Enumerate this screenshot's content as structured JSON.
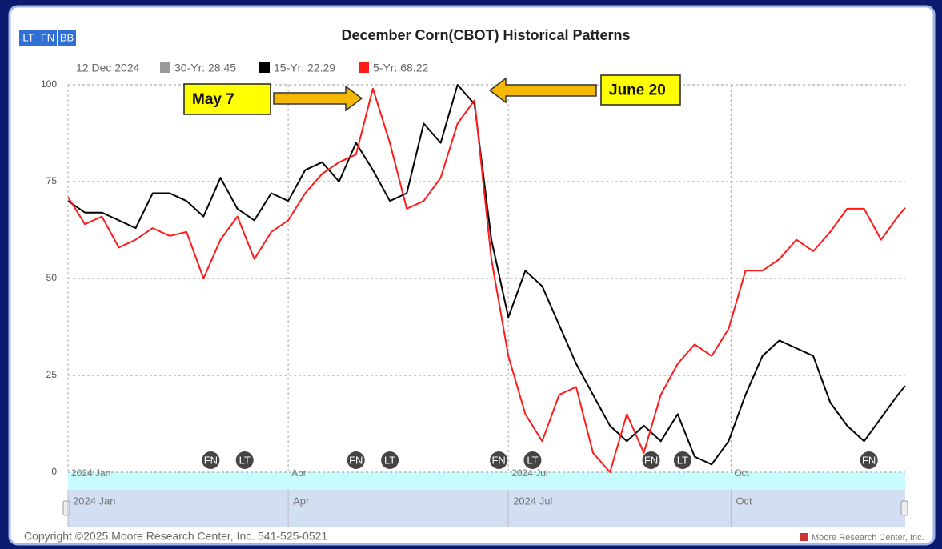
{
  "chart_data": {
    "type": "line",
    "title": "December Corn(CBOT) Historical Patterns",
    "date": "12 Dec 2024",
    "buttons": [
      "LT",
      "FN",
      "BB"
    ],
    "series": [
      {
        "name": "30-Yr: 28.45",
        "color": "#999999",
        "visible": false
      },
      {
        "name": "15-Yr: 22.29",
        "color": "#000000",
        "visible": true,
        "values": [
          70,
          67,
          67,
          65,
          63,
          72,
          72,
          70,
          66,
          76,
          68,
          65,
          72,
          70,
          78,
          80,
          75,
          85,
          78,
          70,
          72,
          90,
          85,
          100,
          95,
          60,
          40,
          52,
          48,
          38,
          28,
          20,
          12,
          8,
          12,
          8,
          15,
          4,
          2,
          8,
          20,
          30,
          34,
          32,
          30,
          18,
          12,
          8,
          14,
          20,
          22.29
        ]
      },
      {
        "name": "5-Yr: 68.22",
        "color": "#ff1a1a",
        "visible": true,
        "values": [
          71,
          64,
          66,
          58,
          60,
          63,
          61,
          62,
          50,
          60,
          66,
          55,
          62,
          65,
          72,
          77,
          80,
          82,
          99,
          85,
          68,
          70,
          76,
          90,
          96,
          55,
          30,
          15,
          8,
          20,
          22,
          5,
          0,
          15,
          5,
          20,
          28,
          33,
          30,
          37,
          52,
          52,
          55,
          60,
          57,
          62,
          68,
          68,
          60,
          66,
          68.22
        ]
      }
    ],
    "x": [
      0,
      7,
      14,
      21,
      28,
      35,
      42,
      49,
      56,
      63,
      70,
      77,
      84,
      91,
      98,
      105,
      112,
      119,
      126,
      133,
      140,
      147,
      154,
      161,
      168,
      175,
      182,
      189,
      196,
      203,
      210,
      217,
      224,
      231,
      238,
      245,
      252,
      259,
      266,
      273,
      280,
      287,
      294,
      301,
      308,
      315,
      322,
      329,
      336,
      343,
      346
    ],
    "xlim": [
      0,
      346
    ],
    "xticks": [
      {
        "value": 0,
        "label": "2024 Jan"
      },
      {
        "value": 91,
        "label": "Apr"
      },
      {
        "value": 182,
        "label": "2024 Jul"
      },
      {
        "value": 274,
        "label": "Oct"
      }
    ],
    "ylim": [
      0,
      100
    ],
    "yticks": [
      0,
      25,
      50,
      75,
      100
    ],
    "grid": true,
    "events": [
      {
        "x": 59,
        "label": "FN"
      },
      {
        "x": 73,
        "label": "LT"
      },
      {
        "x": 119,
        "label": "FN"
      },
      {
        "x": 133,
        "label": "LT"
      },
      {
        "x": 178,
        "label": "FN"
      },
      {
        "x": 192,
        "label": "LT"
      },
      {
        "x": 241,
        "label": "FN"
      },
      {
        "x": 254,
        "label": "LT"
      },
      {
        "x": 331,
        "label": "FN"
      }
    ],
    "annotations": [
      {
        "text": "May 7"
      },
      {
        "text": "June 20"
      }
    ],
    "copyright": "Copyright ©2025 Moore Research Center, Inc. 541-525-0521",
    "credit": "Moore Research Center, Inc."
  }
}
